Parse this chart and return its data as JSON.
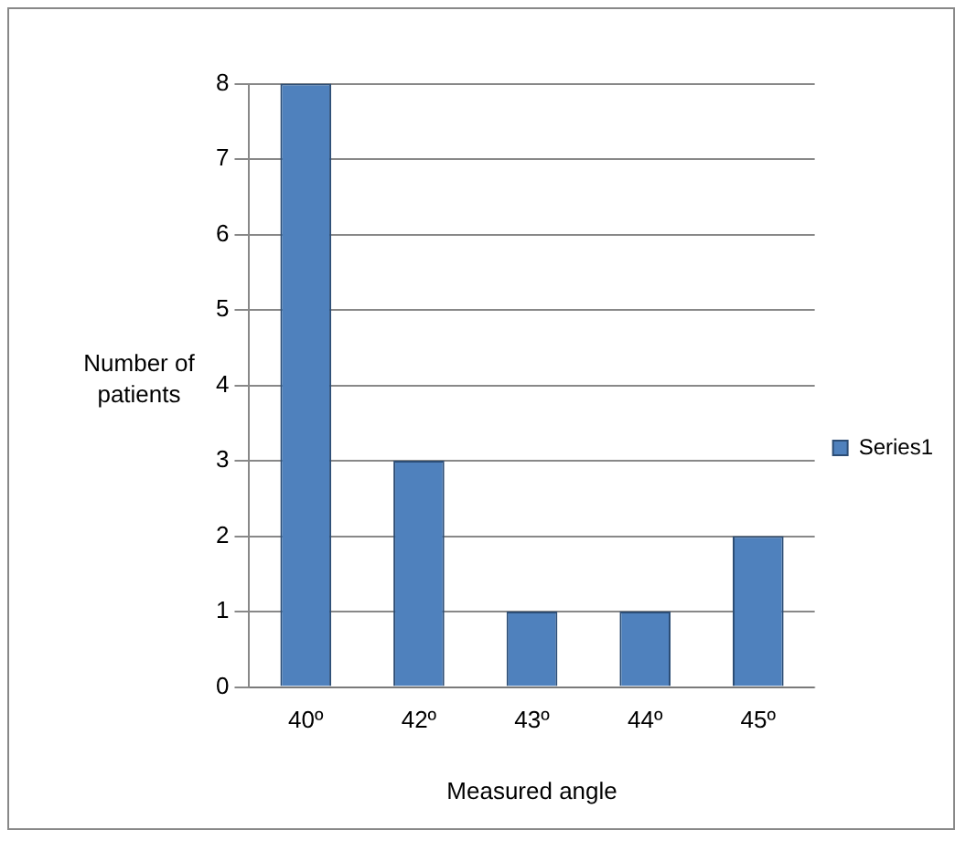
{
  "chart_data": {
    "type": "bar",
    "xlabel": "Measured angle",
    "ylabel": "Number of patients",
    "categories": [
      "40º",
      "42º",
      "43º",
      "44º",
      "45º"
    ],
    "series": [
      {
        "name": "Series1",
        "color": "#4f81bd",
        "values": [
          8,
          3,
          1,
          1,
          2
        ]
      }
    ],
    "ylim": [
      0,
      8
    ],
    "yticks": [
      0,
      1,
      2,
      3,
      4,
      5,
      6,
      7,
      8
    ],
    "grid": "y",
    "legend": "right"
  }
}
